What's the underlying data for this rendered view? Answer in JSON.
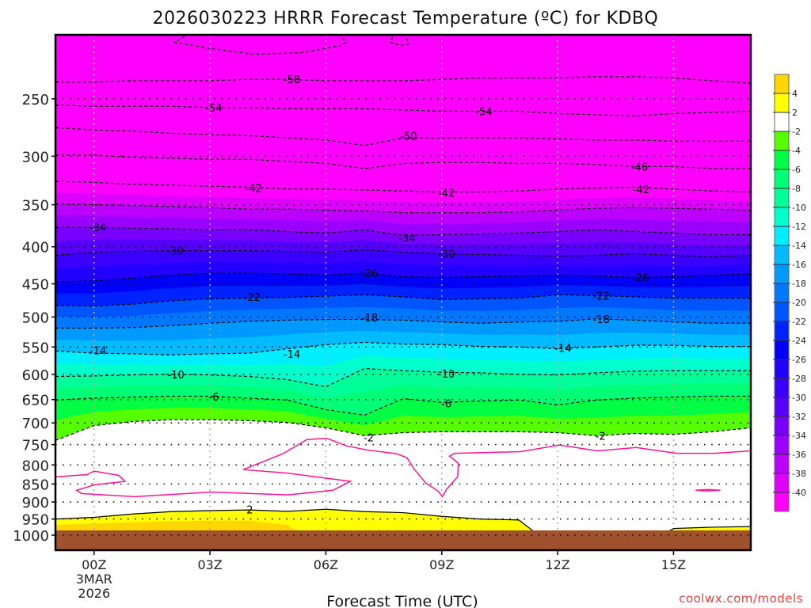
{
  "chart_data": {
    "type": "contour",
    "title": "2026030223 HRRR Forecast Temperature (ºC) for KDBQ",
    "xlabel": "Forecast Time (UTC)",
    "ylabel": "",
    "y_scale": "log-pressure",
    "xlim_hours": [
      -1,
      17
    ],
    "ylim_hpa": [
      204,
      1049
    ],
    "grid": true,
    "x_ticks": [
      {
        "hour": 0,
        "label": "00Z",
        "sub": [
          "3MAR",
          "2026"
        ]
      },
      {
        "hour": 3,
        "label": "03Z",
        "sub": []
      },
      {
        "hour": 6,
        "label": "06Z",
        "sub": []
      },
      {
        "hour": 9,
        "label": "09Z",
        "sub": []
      },
      {
        "hour": 12,
        "label": "12Z",
        "sub": []
      },
      {
        "hour": 15,
        "label": "15Z",
        "sub": []
      }
    ],
    "y_ticks": [
      "250",
      "300",
      "350",
      "400",
      "450",
      "500",
      "550",
      "600",
      "650",
      "700",
      "750",
      "800",
      "850",
      "900",
      "950",
      "1000"
    ],
    "hours": [
      -1,
      0,
      1,
      2,
      3,
      4,
      5,
      6,
      7,
      8,
      9,
      10,
      11,
      12,
      13,
      14,
      15,
      16,
      17
    ],
    "ground_pressure": 985,
    "ground_color": "#a0522d",
    "contours": [
      {
        "level": -58,
        "line": true,
        "p": [
          237,
          237,
          236,
          236,
          236,
          235,
          235,
          236,
          236,
          236,
          235,
          234,
          234,
          234,
          233,
          233,
          234,
          236,
          238
        ]
      },
      {
        "level": -54,
        "line": true,
        "p": [
          255,
          256,
          256,
          256,
          257,
          257,
          258,
          258,
          258,
          259,
          260,
          260,
          260,
          262,
          263,
          264,
          262,
          261,
          260
        ]
      },
      {
        "level": -50,
        "line": true,
        "p": [
          274,
          276,
          277,
          279,
          280,
          281,
          283,
          285,
          290,
          283,
          283,
          283,
          283,
          284,
          285,
          285,
          286,
          286,
          286
        ]
      },
      {
        "level": -46,
        "line": true,
        "p": [
          299,
          299,
          301,
          302,
          303,
          303,
          305,
          307,
          312,
          307,
          306,
          306,
          307,
          307,
          308,
          310,
          310,
          312,
          312
        ]
      },
      {
        "level": -42,
        "line": true,
        "p": [
          325,
          326,
          328,
          329,
          330,
          331,
          333,
          333,
          334,
          335,
          336,
          336,
          335,
          333,
          332,
          331,
          333,
          335,
          336
        ]
      },
      {
        "level": -38,
        "line": true,
        "p": [
          349,
          350,
          351,
          352,
          353,
          355,
          355,
          356,
          357,
          359,
          359,
          359,
          358,
          356,
          354,
          353,
          354,
          355,
          356
        ]
      },
      {
        "level": -34,
        "line": true,
        "p": [
          376,
          376,
          377,
          378,
          379,
          379,
          381,
          383,
          379,
          386,
          385,
          384,
          383,
          381,
          379,
          381,
          383,
          385,
          385
        ]
      },
      {
        "level": -30,
        "line": true,
        "p": [
          411,
          407,
          406,
          405,
          405,
          405,
          406,
          407,
          404,
          407,
          409,
          410,
          411,
          412,
          411,
          409,
          411,
          413,
          411
        ]
      },
      {
        "level": -26,
        "line": true,
        "p": [
          447,
          446,
          442,
          438,
          435,
          435,
          436,
          438,
          435,
          440,
          441,
          440,
          439,
          438,
          439,
          441,
          440,
          438,
          436
        ]
      },
      {
        "level": -22,
        "line": true,
        "p": [
          482,
          483,
          480,
          475,
          472,
          471,
          470,
          468,
          466,
          469,
          473,
          472,
          471,
          466,
          467,
          469,
          471,
          471,
          471
        ]
      },
      {
        "level": -18,
        "line": true,
        "p": [
          518,
          518,
          517,
          514,
          510,
          507,
          505,
          504,
          504,
          505,
          508,
          510,
          508,
          507,
          503,
          505,
          508,
          510,
          510
        ]
      },
      {
        "level": -14,
        "line": true,
        "p": [
          557,
          561,
          562,
          564,
          562,
          561,
          553,
          546,
          542,
          545,
          546,
          549,
          550,
          553,
          550,
          547,
          547,
          549,
          549
        ]
      },
      {
        "level": -10,
        "line": true,
        "p": [
          604,
          603,
          601,
          600,
          601,
          604,
          610,
          624,
          589,
          593,
          596,
          597,
          600,
          601,
          597,
          594,
          593,
          593,
          593
        ]
      },
      {
        "level": -6,
        "line": true,
        "p": [
          651,
          647,
          645,
          643,
          643,
          647,
          651,
          671,
          683,
          648,
          656,
          653,
          651,
          661,
          651,
          647,
          645,
          643,
          643
        ]
      },
      {
        "level": -2,
        "line": true,
        "p": [
          740,
          706,
          697,
          693,
          693,
          695,
          699,
          711,
          729,
          722,
          720,
          720,
          720,
          722,
          729,
          724,
          726,
          720,
          711
        ]
      },
      {
        "level": 2,
        "line": true,
        "p": [
          950,
          945,
          935,
          928,
          925,
          923,
          927,
          921,
          928,
          931,
          942,
          950,
          953,
          1049,
          1049,
          1049,
          979,
          975,
          973
        ]
      },
      {
        "level": 4,
        "line": false,
        "p": [
          968,
          964,
          960,
          957,
          955,
          955,
          968,
          1049,
          1049,
          1049,
          1049,
          1049,
          1049,
          1049,
          1049,
          1049,
          1049,
          1049,
          1049
        ]
      }
    ],
    "zero_line": {
      "level": 0,
      "color": "#ff1493",
      "paths": [
        [
          [
            -1,
            831
          ],
          [
            -0.18,
            825
          ],
          [
            0,
            816
          ],
          [
            0.64,
            827
          ],
          [
            0.8,
            843
          ],
          [
            0.02,
            852
          ],
          [
            -0.45,
            867
          ],
          [
            -0.33,
            876
          ],
          [
            1.05,
            885
          ],
          [
            3.04,
            872
          ],
          [
            5.01,
            880
          ],
          [
            6.18,
            867
          ],
          [
            6.64,
            843
          ],
          [
            6.04,
            835
          ],
          [
            5.01,
            821
          ],
          [
            3.86,
            812
          ],
          [
            4.89,
            772
          ],
          [
            5.51,
            738
          ],
          [
            6.02,
            735
          ],
          [
            6.53,
            753
          ],
          [
            7.07,
            763
          ],
          [
            7.83,
            772
          ],
          [
            8.1,
            782
          ],
          [
            8.28,
            810
          ],
          [
            8.59,
            848
          ],
          [
            8.9,
            869
          ],
          [
            9.02,
            885
          ],
          [
            9.12,
            865
          ],
          [
            9.41,
            831
          ],
          [
            9.43,
            796
          ],
          [
            9.2,
            778
          ],
          [
            9.33,
            771
          ],
          [
            11.05,
            767
          ],
          [
            12.04,
            751
          ],
          [
            13.03,
            765
          ],
          [
            14.03,
            757
          ],
          [
            15.08,
            771
          ],
          [
            16.05,
            771
          ],
          [
            17,
            765
          ]
        ],
        [
          [
            15.57,
            867
          ],
          [
            15.88,
            865
          ],
          [
            16.21,
            867
          ],
          [
            15.88,
            869
          ],
          [
            15.57,
            867
          ]
        ]
      ]
    },
    "upper_loops": [
      [
        [
          2.34,
          205
        ],
        [
          2.08,
          209
        ],
        [
          3.0,
          213
        ],
        [
          4.13,
          217
        ],
        [
          5.36,
          216
        ],
        [
          6.39,
          211
        ],
        [
          6.53,
          209
        ],
        [
          6.39,
          205
        ]
      ],
      [
        [
          7.73,
          205
        ],
        [
          7.68,
          209
        ],
        [
          7.93,
          211
        ],
        [
          8.14,
          210
        ],
        [
          8.07,
          205
        ]
      ]
    ],
    "contour_labels": [
      {
        "text": "-58",
        "hour": 5.12,
        "p": 235
      },
      {
        "text": "-54",
        "hour": 3.1,
        "p": 257
      },
      {
        "text": "-54",
        "hour": 10.09,
        "p": 260
      },
      {
        "text": "-50",
        "hour": 8.14,
        "p": 281
      },
      {
        "text": "-46",
        "hour": 14.12,
        "p": 310
      },
      {
        "text": "-42",
        "hour": 4.13,
        "p": 332
      },
      {
        "text": "-42",
        "hour": 9.12,
        "p": 337
      },
      {
        "text": "-42",
        "hour": 14.16,
        "p": 333
      },
      {
        "text": "-34",
        "hour": 0.1,
        "p": 376
      },
      {
        "text": "-34",
        "hour": 8.1,
        "p": 389
      },
      {
        "text": "-30",
        "hour": 2.1,
        "p": 405
      },
      {
        "text": "-30",
        "hour": 9.12,
        "p": 409
      },
      {
        "text": "-26",
        "hour": 7.13,
        "p": 435
      },
      {
        "text": "-26",
        "hour": 14.14,
        "p": 441
      },
      {
        "text": "-22",
        "hour": 4.09,
        "p": 469
      },
      {
        "text": "-22",
        "hour": 13.13,
        "p": 467
      },
      {
        "text": "-18",
        "hour": 7.13,
        "p": 501
      },
      {
        "text": "-18",
        "hour": 13.13,
        "p": 503
      },
      {
        "text": "-14",
        "hour": 0.1,
        "p": 556
      },
      {
        "text": "-14",
        "hour": 5.12,
        "p": 562
      },
      {
        "text": "-14",
        "hour": 12.14,
        "p": 552
      },
      {
        "text": "-10",
        "hour": 2.12,
        "p": 600
      },
      {
        "text": "-10",
        "hour": 9.12,
        "p": 599
      },
      {
        "text": "-6",
        "hour": 3.1,
        "p": 644
      },
      {
        "text": "-6",
        "hour": 9.12,
        "p": 658
      },
      {
        "text": "-2",
        "hour": 7.11,
        "p": 733
      },
      {
        "text": "-2",
        "hour": 13.11,
        "p": 729
      },
      {
        "text": "2",
        "hour": 4.03,
        "p": 921
      }
    ],
    "colorbar": {
      "boundaries": [
        -40,
        -38,
        -36,
        -34,
        -32,
        -30,
        -28,
        -26,
        -24,
        -22,
        -20,
        -18,
        -16,
        -14,
        -12,
        -10,
        -8,
        -6,
        -4,
        -2,
        2,
        4
      ],
      "labels": [
        "-40",
        "-38",
        "-36",
        "-34",
        "-32",
        "-30",
        "-28",
        "-26",
        "-24",
        "-22",
        "-20",
        "-18",
        "-16",
        "-14",
        "-12",
        "-10",
        "-8",
        "-6",
        "-4",
        "-2",
        "2",
        "4"
      ],
      "colors": [
        "#ff00ff",
        "#dd00ff",
        "#bb00ff",
        "#9900ff",
        "#7700ff",
        "#5500ff",
        "#3a00ff",
        "#2200ff",
        "#0000ff",
        "#0022ff",
        "#0055ff",
        "#0077ff",
        "#0099ff",
        "#00bbff",
        "#00eeff",
        "#00ffcc",
        "#00ff99",
        "#00ff77",
        "#00ff44",
        "#55ff00",
        "#ffffff",
        "#ffff00",
        "#ffd700"
      ]
    }
  },
  "watermark": "coolwx.com/models"
}
